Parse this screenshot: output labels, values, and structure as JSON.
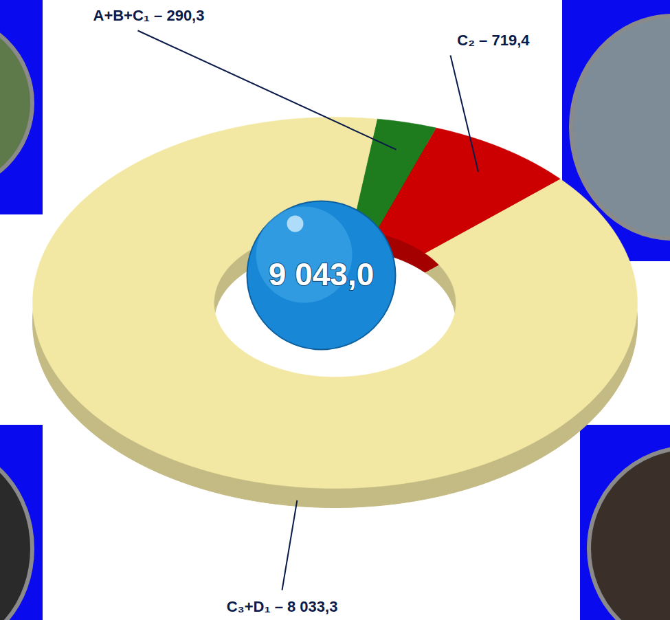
{
  "chart_data": {
    "type": "pie",
    "categories": [
      "A+B+C₁ – 290,3",
      "C₂ – 719,4",
      "C₃+D₁ – 8 033,3"
    ],
    "values": [
      290.3,
      719.4,
      8033.3
    ],
    "colors": [
      "#1e7b1e",
      "#cc0000",
      "#f3e8a3"
    ],
    "total": {
      "value": 9043.0,
      "label": "9 043,0"
    }
  }
}
